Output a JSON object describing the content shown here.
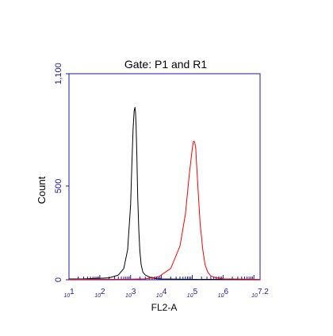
{
  "chart_data": {
    "type": "line",
    "title": "Gate: P1 and R1",
    "xlabel": "FL2-A",
    "ylabel": "Count",
    "xscale": "log",
    "xlim": [
      10,
      15848931.92
    ],
    "ylim": [
      0,
      1100
    ],
    "x_tick_labels": [
      {
        "base": "10",
        "exp": "1"
      },
      {
        "base": "10",
        "exp": "2"
      },
      {
        "base": "10",
        "exp": "3"
      },
      {
        "base": "10",
        "exp": "4"
      },
      {
        "base": "10",
        "exp": "5"
      },
      {
        "base": "10",
        "exp": "6"
      },
      {
        "base": "10",
        "exp": "7.2"
      }
    ],
    "y_ticks": [
      0,
      500,
      1100
    ],
    "y_tick_labels": [
      "0",
      "500",
      "1,100"
    ],
    "grid": false,
    "axis_color": "#1a1aa6",
    "series": [
      {
        "color": "#000000",
        "x": [
          10,
          30,
          100,
          200,
          400,
          600,
          800,
          1000,
          1100,
          1200,
          1300,
          1380,
          1440,
          1500,
          1600,
          1700,
          1850,
          2000,
          2200,
          2500,
          3000,
          3500,
          4000,
          5000,
          7000,
          10000,
          100000,
          15848931.92
        ],
        "y": [
          4,
          5,
          8,
          10,
          25,
          60,
          160,
          400,
          620,
          800,
          900,
          920,
          895,
          830,
          650,
          440,
          260,
          150,
          80,
          40,
          25,
          20,
          15,
          10,
          6,
          4,
          2,
          1
        ]
      },
      {
        "color": "#ff0000",
        "x": [
          10,
          1000,
          3000,
          8000,
          20000,
          40000,
          60000,
          80000,
          100000,
          110000,
          120000,
          130000,
          140000,
          160000,
          180000,
          220000,
          260000,
          320000,
          400000,
          600000,
          1000000,
          15848931.92
        ],
        "y": [
          2,
          3,
          5,
          15,
          60,
          180,
          350,
          560,
          700,
          740,
          735,
          700,
          600,
          440,
          300,
          160,
          80,
          40,
          20,
          10,
          5,
          2
        ]
      }
    ]
  }
}
